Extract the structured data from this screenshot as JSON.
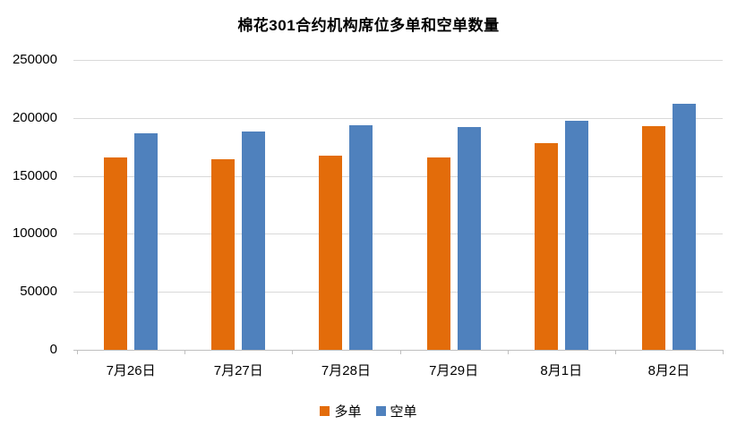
{
  "title": "棉花301合约机构席位多单和空单数量",
  "colors": {
    "series_long": "#E36C0A",
    "series_short": "#4F81BD",
    "gridline": "#D9D9D9",
    "axis": "#BFBFBF",
    "text": "#000000",
    "background": "#FFFFFF"
  },
  "chart_data": {
    "type": "bar",
    "title": "棉花301合约机构席位多单和空单数量",
    "categories": [
      "7月26日",
      "7月27日",
      "7月28日",
      "7月29日",
      "8月1日",
      "8月2日"
    ],
    "series": [
      {
        "name": "多单",
        "color": "#E36C0A",
        "values": [
          166000,
          164500,
          167500,
          166000,
          178000,
          193000
        ]
      },
      {
        "name": "空单",
        "color": "#4F81BD",
        "values": [
          187000,
          188000,
          193500,
          192500,
          197500,
          212000
        ]
      }
    ],
    "xlabel": "",
    "ylabel": "",
    "ylim": [
      0,
      250000
    ],
    "ytick_step": 50000,
    "ytick_labels": [
      "0",
      "50000",
      "100000",
      "150000",
      "200000",
      "250000"
    ],
    "grid": true,
    "legend_position": "bottom"
  }
}
